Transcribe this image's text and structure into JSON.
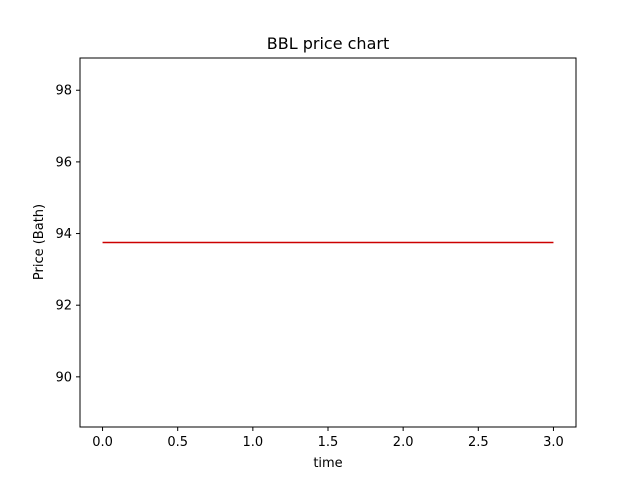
{
  "chart_data": {
    "type": "line",
    "title": "BBL price chart",
    "xlabel": "time",
    "ylabel": "Price (Bath)",
    "x": [
      0,
      1,
      2,
      3
    ],
    "series": [
      {
        "values": [
          93.75,
          93.75,
          93.75,
          93.75
        ],
        "color": "#cc0000"
      }
    ],
    "xlim": [
      -0.15,
      3.15
    ],
    "ylim": [
      88.6,
      98.9
    ],
    "xticks": [
      0.0,
      0.5,
      1.0,
      1.5,
      2.0,
      2.5,
      3.0
    ],
    "xtick_labels": [
      "0.0",
      "0.5",
      "1.0",
      "1.5",
      "2.0",
      "2.5",
      "3.0"
    ],
    "yticks": [
      90,
      92,
      94,
      96,
      98
    ],
    "ytick_labels": [
      "90",
      "92",
      "94",
      "96",
      "98"
    ],
    "grid": false,
    "legend": "none"
  }
}
